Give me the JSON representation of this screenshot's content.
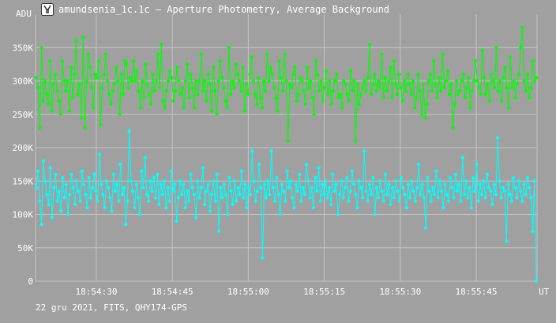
{
  "window": {
    "title": "amundsenia_1c.1c – Aperture Photometry, Average Background",
    "icon": "telescope-app-icon"
  },
  "footer": {
    "info": "22 gru 2021, FITS, QHY174-GPS"
  },
  "colors": {
    "background": "#a0a0a0",
    "grid": "#c4c4c4",
    "series_green": "#00ff00",
    "series_cyan": "#00ffff",
    "text": "#ffffff"
  },
  "chart_data": {
    "type": "line",
    "ylabel": "ADU",
    "xlabel": "UT",
    "ylim": [
      0,
      400000
    ],
    "y_ticks": [
      0,
      50000,
      100000,
      150000,
      200000,
      250000,
      300000,
      350000
    ],
    "y_tick_labels": [
      "0",
      "50K",
      "100K",
      "150K",
      "200K",
      "250K",
      "300K",
      "350K"
    ],
    "x_tick_labels": [
      "18:54:30",
      "18:54:45",
      "18:55:00",
      "18:55:15",
      "18:55:30",
      "18:55:45"
    ],
    "x_range_seconds": [
      "18:54:18",
      "18:55:57"
    ],
    "grid": true,
    "series": [
      {
        "color": "#00ff00",
        "values": [
          305000,
          290000,
          230000,
          350000,
          270000,
          300000,
          280000,
          265000,
          330000,
          255000,
          295000,
          310000,
          285000,
          270000,
          250000,
          330000,
          300000,
          285000,
          300000,
          255000,
          320000,
          275000,
          310000,
          360000,
          280000,
          295000,
          245000,
          365000,
          230000,
          300000,
          340000,
          320000,
          290000,
          260000,
          310000,
          305000,
          330000,
          235000,
          290000,
          310000,
          340000,
          300000,
          280000,
          265000,
          285000,
          295000,
          320000,
          300000,
          250000,
          310000,
          280000,
          330000,
          325000,
          290000,
          305000,
          300000,
          330000,
          300000,
          315000,
          285000,
          260000,
          300000,
          275000,
          325000,
          295000,
          280000,
          265000,
          310000,
          285000,
          300000,
          340000,
          290000,
          355000,
          270000,
          260000,
          285000,
          300000,
          315000,
          305000,
          270000,
          285000,
          320000,
          300000,
          280000,
          290000,
          260000,
          300000,
          325000,
          275000,
          310000,
          290000,
          260000,
          300000,
          280000,
          300000,
          340000,
          285000,
          300000,
          270000,
          310000,
          295000,
          255000,
          320000,
          285000,
          250000,
          300000,
          330000,
          305000,
          290000,
          270000,
          260000,
          350000,
          280000,
          300000,
          290000,
          325000,
          310000,
          300000,
          285000,
          320000,
          255000,
          295000,
          280000,
          310000,
          335000,
          300000,
          280000,
          265000,
          305000,
          275000,
          260000,
          300000,
          285000,
          340000,
          300000,
          320000,
          310000,
          290000,
          275000,
          255000,
          330000,
          305000,
          285000,
          340000,
          300000,
          210000,
          295000,
          290000,
          310000,
          320000,
          270000,
          280000,
          305000,
          300000,
          285000,
          265000,
          320000,
          290000,
          300000,
          275000,
          250000,
          330000,
          310000,
          285000,
          300000,
          270000,
          290000,
          315000,
          280000,
          300000,
          265000,
          285000,
          300000,
          310000,
          275000,
          280000,
          260000,
          300000,
          295000,
          280000,
          270000,
          315000,
          285000,
          300000,
          210000,
          295000,
          265000,
          280000,
          290000,
          300000,
          285000,
          305000,
          355000,
          280000,
          295000,
          310000,
          285000,
          300000,
          290000,
          340000,
          275000,
          305000,
          285000,
          300000,
          320000,
          275000,
          330000,
          295000,
          280000,
          310000,
          290000,
          270000,
          300000,
          285000,
          310000,
          295000,
          280000,
          300000,
          260000,
          275000,
          310000,
          285000,
          250000,
          295000,
          245000,
          265000,
          300000,
          310000,
          285000,
          330000,
          295000,
          275000,
          305000,
          285000,
          340000,
          290000,
          300000,
          315000,
          280000,
          295000,
          230000,
          265000,
          300000,
          280000,
          285000,
          300000,
          310000,
          275000,
          290000,
          305000,
          260000,
          285000,
          300000,
          330000,
          300000,
          290000,
          280000,
          345000,
          305000,
          280000,
          295000,
          270000,
          310000,
          300000,
          290000,
          350000,
          285000,
          300000,
          270000,
          305000,
          320000,
          290000,
          260000,
          335000,
          290000,
          300000,
          275000,
          295000,
          310000,
          350000,
          380000,
          300000,
          285000,
          310000,
          275000,
          290000,
          330000,
          300000,
          305000
        ]
      },
      {
        "color": "#00ffff",
        "values": [
          140000,
          165000,
          120000,
          85000,
          180000,
          150000,
          130000,
          115000,
          170000,
          95000,
          140000,
          160000,
          120000,
          135000,
          105000,
          155000,
          125000,
          145000,
          100000,
          130000,
          160000,
          140000,
          115000,
          150000,
          135000,
          120000,
          165000,
          145000,
          130000,
          110000,
          155000,
          125000,
          140000,
          160000,
          135000,
          120000,
          190000,
          145000,
          130000,
          110000,
          150000,
          140000,
          125000,
          105000,
          160000,
          135000,
          145000,
          120000,
          175000,
          130000,
          140000,
          85000,
          120000,
          225000,
          150000,
          135000,
          110000,
          145000,
          125000,
          100000,
          165000,
          140000,
          185000,
          130000,
          120000,
          150000,
          135000,
          155000,
          125000,
          160000,
          115000,
          145000,
          130000,
          150000,
          110000,
          140000,
          120000,
          165000,
          135000,
          145000,
          90000,
          125000,
          150000,
          130000,
          145000,
          110000,
          135000,
          120000,
          160000,
          140000,
          130000,
          95000,
          150000,
          125000,
          140000,
          170000,
          115000,
          135000,
          145000,
          105000,
          130000,
          150000,
          120000,
          160000,
          75000,
          140000,
          125000,
          145000,
          130000,
          100000,
          155000,
          135000,
          115000,
          150000,
          120000,
          140000,
          130000,
          165000,
          125000,
          145000,
          110000,
          140000,
          130000,
          195000,
          150000,
          120000,
          135000,
          175000,
          140000,
          35000,
          145000,
          125000,
          150000,
          130000,
          195000,
          140000,
          120000,
          155000,
          130000,
          100000,
          145000,
          135000,
          120000,
          165000,
          140000,
          150000,
          125000,
          110000,
          145000,
          135000,
          160000,
          120000,
          140000,
          130000,
          175000,
          150000,
          125000,
          140000,
          110000,
          155000,
          135000,
          170000,
          120000,
          145000,
          130000,
          150000,
          125000,
          140000,
          115000,
          160000,
          135000,
          145000,
          100000,
          130000,
          150000,
          125000,
          140000,
          155000,
          120000,
          135000,
          165000,
          145000,
          130000,
          110000,
          150000,
          140000,
          125000,
          195000,
          135000,
          120000,
          145000,
          130000,
          155000,
          100000,
          140000,
          125000,
          150000,
          135000,
          120000,
          160000,
          130000,
          145000,
          115000,
          140000,
          125000,
          150000,
          135000,
          120000,
          155000,
          140000,
          130000,
          110000,
          145000,
          125000,
          150000,
          135000,
          120000,
          140000,
          175000,
          130000,
          145000,
          125000,
          80000,
          155000,
          135000,
          120000,
          140000,
          130000,
          165000,
          125000,
          150000,
          135000,
          110000,
          145000,
          130000,
          120000,
          155000,
          140000,
          125000,
          160000,
          135000,
          145000,
          120000,
          185000,
          130000,
          150000,
          125000,
          140000,
          110000,
          155000,
          135000,
          175000,
          120000,
          145000,
          130000,
          150000,
          125000,
          160000,
          140000,
          135000,
          115000,
          145000,
          130000,
          215000,
          150000,
          125000,
          140000,
          135000,
          60000,
          145000,
          130000,
          120000,
          155000,
          140000,
          125000,
          150000,
          135000,
          120000,
          145000,
          130000,
          155000,
          140000,
          125000,
          75000,
          150000,
          135
        ]
      }
    ]
  }
}
